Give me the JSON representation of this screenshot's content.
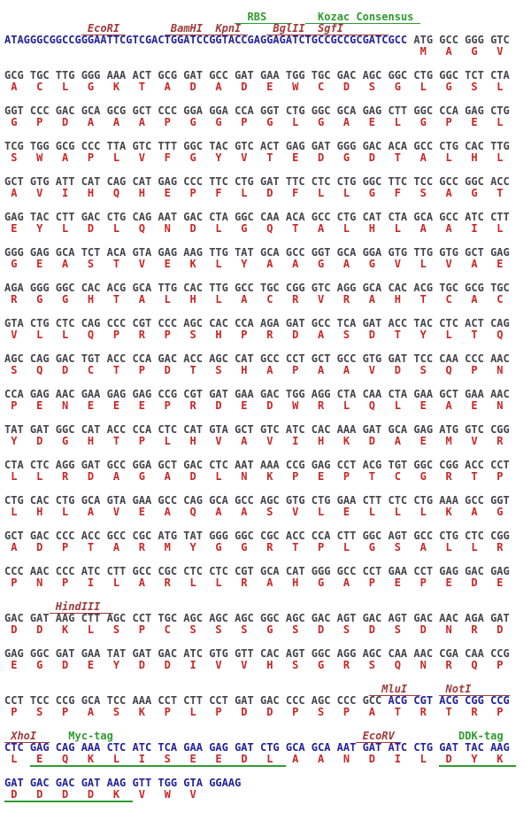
{
  "colors": {
    "dna_blue": "#23239d",
    "codon_gray": "#45454d",
    "aa_red": "#c92727",
    "site_red": "#a03a3a",
    "feature_green": "#2f9b2f",
    "background": "#ffffff"
  },
  "legend": {
    "segment_styles": {
      "b": "vector-dna-sequence",
      "g": "codon-sequence",
      "r": "amino-acid",
      "ru": "amino-acid-tag-underlined",
      "s": "restriction-site-label",
      "t": "feature-label",
      "tu": "feature-label-underlined",
      "w": "spacer"
    }
  },
  "blocks": [
    {
      "rows": [
        {
          "type": "annotation",
          "segments": [
            [
              "w",
              36
            ],
            [
              "tu",
              "  RBS    "
            ],
            [
              "w",
              2
            ],
            [
              "tu",
              "  Kozac Consensus "
            ]
          ]
        },
        {
          "type": "annotation",
          "segments": [
            [
              "w",
              12
            ],
            [
              "s",
              " EcoRI "
            ],
            [
              "w",
              6
            ],
            [
              "s",
              " BamHI "
            ],
            [
              "s",
              " KpnI "
            ],
            [
              "w",
              3
            ],
            [
              "s",
              " BglII "
            ],
            [
              "s",
              " SgfI       "
            ]
          ]
        },
        {
          "type": "dna",
          "segments": [
            [
              "b",
              "ATAGGGCGGCCGGGAATTCGTCGACTGGATCCGGTACCGAGGAGATCTGCCGCCGCGATCGCC"
            ],
            [
              "g",
              " ATG GCC GGG GTC"
            ]
          ]
        },
        {
          "type": "aa",
          "offset": 64,
          "cells": [
            [
              "MAGV",
              false
            ]
          ]
        }
      ]
    },
    {
      "rows": [
        {
          "type": "dna",
          "segments": [
            [
              "g",
              "GCG TGC TTG GGG AAA ACT GCG GAT GCC GAT GAA TGG TGC GAC AGC GGC CTG GGC TCT CTA"
            ]
          ]
        },
        {
          "type": "aa",
          "offset": 0,
          "cells": [
            [
              "ACLGKTADADEWCDSGLGSL",
              false
            ]
          ]
        }
      ]
    },
    {
      "rows": [
        {
          "type": "dna",
          "segments": [
            [
              "g",
              "GGT CCC GAC GCA GCG GCT CCC GGA GGA CCA GGT CTG GGC GCA GAG CTT GGC CCA GAG CTG"
            ]
          ]
        },
        {
          "type": "aa",
          "offset": 0,
          "cells": [
            [
              "GPDAAAPGGPGLGAELGPEL",
              false
            ]
          ]
        }
      ]
    },
    {
      "rows": [
        {
          "type": "dna",
          "segments": [
            [
              "g",
              "TCG TGG GCG CCC TTA GTC TTT GGC TAC GTC ACT GAG GAT GGG GAC ACA GCC CTG CAC TTG"
            ]
          ]
        },
        {
          "type": "aa",
          "offset": 0,
          "cells": [
            [
              "SWAPLVFGYVTEDGDTALHL",
              false
            ]
          ]
        }
      ]
    },
    {
      "rows": [
        {
          "type": "dna",
          "segments": [
            [
              "g",
              "GCT GTG ATT CAT CAG CAT GAG CCC TTC CTG GAT TTC CTC CTG GGC TTC TCC GCC GGC ACC"
            ]
          ]
        },
        {
          "type": "aa",
          "offset": 0,
          "cells": [
            [
              "AVIHQHEPFLDFLLGFSAGT",
              false
            ]
          ]
        }
      ]
    },
    {
      "rows": [
        {
          "type": "dna",
          "segments": [
            [
              "g",
              "GAG TAC CTT GAC CTG CAG AAT GAC CTA GGC CAA ACA GCC CTG CAT CTA GCA GCC ATC CTT"
            ]
          ]
        },
        {
          "type": "aa",
          "offset": 0,
          "cells": [
            [
              "EYLDLQNDLGQTALHLAAIL",
              false
            ]
          ]
        }
      ]
    },
    {
      "rows": [
        {
          "type": "dna",
          "segments": [
            [
              "g",
              "GGG GAG GCA TCT ACA GTA GAG AAG TTG TAT GCA GCC GGT GCA GGA GTG TTG GTG GCT GAG"
            ]
          ]
        },
        {
          "type": "aa",
          "offset": 0,
          "cells": [
            [
              "GEASTVEKLYAAGAGVLVAE",
              false
            ]
          ]
        }
      ]
    },
    {
      "rows": [
        {
          "type": "dna",
          "segments": [
            [
              "g",
              "AGA GGG GGC CAC ACG GCA TTG CAC TTG GCC TGC CGG GTC AGG GCA CAC ACG TGC GCG TGC"
            ]
          ]
        },
        {
          "type": "aa",
          "offset": 0,
          "cells": [
            [
              "RGGHTALHLACRVRAHTCAC",
              false
            ]
          ]
        }
      ]
    },
    {
      "rows": [
        {
          "type": "dna",
          "segments": [
            [
              "g",
              "GTA CTG CTC CAG CCC CGT CCC AGC CAC CCA AGA GAT GCC TCA GAT ACC TAC CTC ACT CAG"
            ]
          ]
        },
        {
          "type": "aa",
          "offset": 0,
          "cells": [
            [
              "VLLQPRPSHPRDASDTYLTQ",
              false
            ]
          ]
        }
      ]
    },
    {
      "rows": [
        {
          "type": "dna",
          "segments": [
            [
              "g",
              "AGC CAG GAC TGT ACC CCA GAC ACC AGC CAT GCC CCT GCT GCC GTG GAT TCC CAA CCC AAC"
            ]
          ]
        },
        {
          "type": "aa",
          "offset": 0,
          "cells": [
            [
              "SQDCTPDTSHAPAAVDSQPN",
              false
            ]
          ]
        }
      ]
    },
    {
      "rows": [
        {
          "type": "dna",
          "segments": [
            [
              "g",
              "CCA GAG AAC GAA GAG GAG CCG CGT GAT GAA GAC TGG AGG CTA CAA CTA GAA GCT GAA AAC"
            ]
          ]
        },
        {
          "type": "aa",
          "offset": 0,
          "cells": [
            [
              "PENEEEPRDEDWRLQLEAEN",
              false
            ]
          ]
        }
      ]
    },
    {
      "rows": [
        {
          "type": "dna",
          "segments": [
            [
              "g",
              "TAT GAT GGC CAT ACC CCA CTC CAT GTA GCT GTC ATC CAC AAA GAT GCA GAG ATG GTC CGG"
            ]
          ]
        },
        {
          "type": "aa",
          "offset": 0,
          "cells": [
            [
              "YDGHTPLHVAVIHKDAEMVR",
              false
            ]
          ]
        }
      ]
    },
    {
      "rows": [
        {
          "type": "dna",
          "segments": [
            [
              "g",
              "CTA CTC AGG GAT GCC GGA GCT GAC CTC AAT AAA CCG GAG CCT ACG TGT GGC CGG ACC CCT"
            ]
          ]
        },
        {
          "type": "aa",
          "offset": 0,
          "cells": [
            [
              "LLRDAGADLNKPEPTCGRTP",
              false
            ]
          ]
        }
      ]
    },
    {
      "rows": [
        {
          "type": "dna",
          "segments": [
            [
              "g",
              "CTG CAC CTG GCA GTA GAA GCC CAG GCA GCC AGC GTG CTG GAA CTT CTC CTG AAA GCC GGT"
            ]
          ]
        },
        {
          "type": "aa",
          "offset": 0,
          "cells": [
            [
              "LHLAVEAQAASVLELLLKAG",
              false
            ]
          ]
        }
      ]
    },
    {
      "rows": [
        {
          "type": "dna",
          "segments": [
            [
              "g",
              "GCT GAC CCC ACC GCC CGC ATG TAT GGG GGC CGC ACC CCA CTT GGC AGT GCC CTG CTC CGG"
            ]
          ]
        },
        {
          "type": "aa",
          "offset": 0,
          "cells": [
            [
              "ADPTARMYGGRTPLGSALLR",
              false
            ]
          ]
        }
      ]
    },
    {
      "rows": [
        {
          "type": "dna",
          "segments": [
            [
              "g",
              "CCC AAC CCC ATC CTT GCC CGC CTC CTC CGT GCA CAT GGG GCC CCT GAA CCT GAG GAC GAG"
            ]
          ]
        },
        {
          "type": "aa",
          "offset": 0,
          "cells": [
            [
              "PNPILARLLRAHGAPEPEDE",
              false
            ]
          ]
        }
      ]
    },
    {
      "rows": [
        {
          "type": "annotation",
          "segments": [
            [
              "w",
              7
            ],
            [
              "s",
              " HindIII  "
            ]
          ]
        },
        {
          "type": "dna",
          "segments": [
            [
              "g",
              "GAC GAT AAG CTT AGC CCT TGC AGC AGC AGC GGC AGC GAC AGT GAC AGT GAC AAC AGA GAT"
            ]
          ]
        },
        {
          "type": "aa",
          "offset": 0,
          "cells": [
            [
              "DDKLSPCSSSGSDSDSDNRD",
              false
            ]
          ]
        }
      ]
    },
    {
      "rows": [
        {
          "type": "dna",
          "segments": [
            [
              "g",
              "GAG GGC GAT GAA TAT GAT GAC ATC GTG GTT CAC AGT GGC AGG AGC CAA AAC CGA CAA CCG"
            ]
          ]
        },
        {
          "type": "aa",
          "offset": 0,
          "cells": [
            [
              "EGDEYDDIVVHSGRSQNRQP",
              false
            ]
          ]
        }
      ]
    },
    {
      "rows": [
        {
          "type": "annotation",
          "segments": [
            [
              "w",
              57
            ],
            [
              "s",
              "  MluI  "
            ],
            [
              "w",
              3
            ],
            [
              "s",
              " NotI      "
            ]
          ]
        },
        {
          "type": "dna",
          "segments": [
            [
              "g",
              "CCT TCC CCG GCA TCC AAA CCT CTT CCT GAT GAC CCC AGC CCC GCC "
            ],
            [
              "b",
              "ACG CGT ACG CGG CCG"
            ]
          ]
        },
        {
          "type": "aa",
          "offset": 0,
          "cells": [
            [
              "PSPASKPLPDDPSPATRTRP",
              false
            ]
          ]
        }
      ]
    },
    {
      "rows": [
        {
          "type": "annotation",
          "segments": [
            [
              "s",
              " XhoI  "
            ],
            [
              "w",
              3
            ],
            [
              "t",
              "Myc-tag"
            ],
            [
              "w",
              38
            ],
            [
              "s",
              " EcoRV "
            ],
            [
              "w",
              9
            ],
            [
              "t",
              "DDK-tag"
            ]
          ]
        },
        {
          "type": "dna",
          "segments": [
            [
              "b",
              "CTC GAG CAG AAA CTC ATC TCA GAA GAG GAT CTG GCA GCA AAT GAT ATC CTG GAT TAC AAG"
            ]
          ]
        },
        {
          "type": "aa",
          "offset": 0,
          "cells": [
            [
              "L",
              false
            ],
            [
              "EQKLISEEDL",
              true
            ],
            [
              "AANDIL",
              false
            ],
            [
              "DYK",
              true
            ]
          ]
        }
      ]
    },
    {
      "rows": [
        {
          "type": "dna",
          "segments": [
            [
              "b",
              "GAT GAC GAC GAT AAG GTT TGG GTA GGAAG"
            ]
          ]
        },
        {
          "type": "aa",
          "offset": 0,
          "cells": [
            [
              "DDDDK",
              true
            ],
            [
              "VWV",
              false
            ]
          ]
        }
      ]
    }
  ]
}
